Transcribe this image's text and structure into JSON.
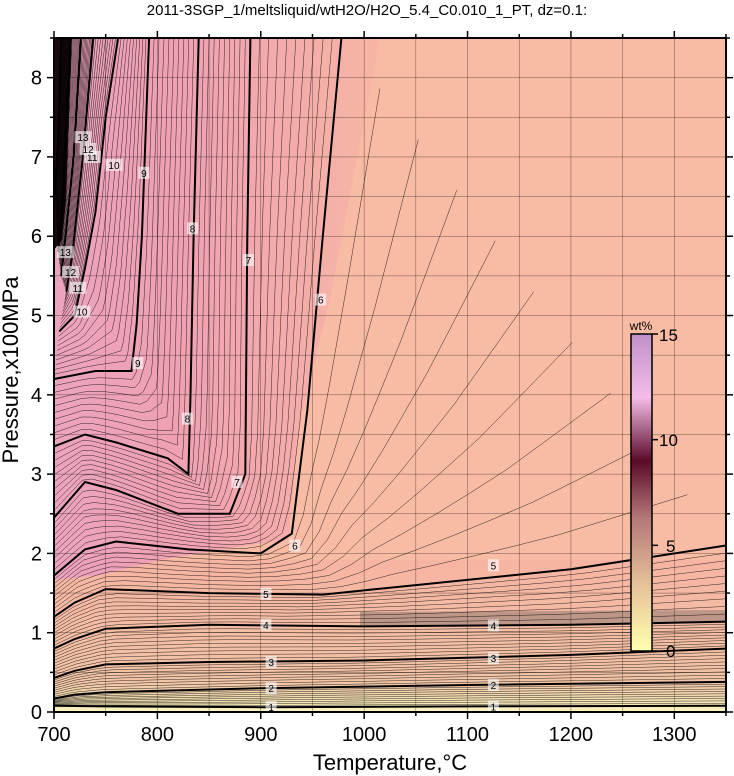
{
  "chart_data": {
    "type": "contour",
    "title": "2011-3SGP_1/meltsliquid/wtH2O/H2O_5.4_C0.010_1_PT, dz=0.1:",
    "xlabel": "Temperature,°C",
    "ylabel": "Pressure,x100MPa",
    "xlim": [
      700,
      1350
    ],
    "ylim": [
      0,
      8.5
    ],
    "x_ticks": [
      "700",
      "800",
      "900",
      "1000",
      "1100",
      "1200",
      "1300"
    ],
    "y_ticks": [
      "0",
      "1",
      "2",
      "3",
      "4",
      "5",
      "6",
      "7",
      "8"
    ],
    "grid": true,
    "colorbar": {
      "title": "wt%",
      "range": [
        0,
        15
      ],
      "ticks": [
        "0",
        "5",
        "10",
        "15"
      ],
      "placement": "right-inside"
    },
    "major_contour_interval": 1,
    "minor_contour_interval": 0.1,
    "contours": [
      {
        "level": "1",
        "points": [
          [
            700,
            0.08
          ],
          [
            750,
            0.07
          ],
          [
            900,
            0.06
          ],
          [
            1100,
            0.07
          ],
          [
            1350,
            0.08
          ]
        ]
      },
      {
        "level": "2",
        "points": [
          [
            700,
            0.17
          ],
          [
            720,
            0.22
          ],
          [
            750,
            0.25
          ],
          [
            900,
            0.3
          ],
          [
            1100,
            0.34
          ],
          [
            1350,
            0.38
          ]
        ]
      },
      {
        "level": "3",
        "points": [
          [
            700,
            0.43
          ],
          [
            720,
            0.52
          ],
          [
            750,
            0.6
          ],
          [
            850,
            0.63
          ],
          [
            1000,
            0.65
          ],
          [
            1200,
            0.72
          ],
          [
            1350,
            0.8
          ]
        ]
      },
      {
        "level": "4",
        "points": [
          [
            700,
            0.8
          ],
          [
            720,
            0.92
          ],
          [
            750,
            1.05
          ],
          [
            850,
            1.1
          ],
          [
            1000,
            1.08
          ],
          [
            1200,
            1.1
          ],
          [
            1350,
            1.14
          ]
        ]
      },
      {
        "level": "5",
        "points": [
          [
            700,
            1.2
          ],
          [
            720,
            1.38
          ],
          [
            750,
            1.55
          ],
          [
            850,
            1.5
          ],
          [
            960,
            1.48
          ],
          [
            1050,
            1.6
          ],
          [
            1200,
            1.8
          ],
          [
            1350,
            2.1
          ]
        ]
      },
      {
        "level": "6",
        "points": [
          [
            700,
            1.72
          ],
          [
            730,
            2.05
          ],
          [
            760,
            2.15
          ],
          [
            830,
            2.05
          ],
          [
            900,
            2.0
          ],
          [
            930,
            2.25
          ],
          [
            945,
            3.8
          ],
          [
            960,
            6.0
          ],
          [
            978,
            8.5
          ]
        ]
      },
      {
        "level": "7",
        "points": [
          [
            700,
            2.45
          ],
          [
            730,
            2.9
          ],
          [
            760,
            2.8
          ],
          [
            820,
            2.5
          ],
          [
            870,
            2.5
          ],
          [
            885,
            3.0
          ],
          [
            887,
            6.0
          ],
          [
            890,
            8.5
          ]
        ]
      },
      {
        "level": "8",
        "points": [
          [
            700,
            3.35
          ],
          [
            730,
            3.5
          ],
          [
            760,
            3.4
          ],
          [
            810,
            3.2
          ],
          [
            830,
            3.0
          ],
          [
            832,
            4.0
          ],
          [
            835,
            6.0
          ],
          [
            840,
            8.5
          ]
        ]
      },
      {
        "level": "9",
        "points": [
          [
            700,
            4.2
          ],
          [
            740,
            4.3
          ],
          [
            775,
            4.3
          ],
          [
            780,
            4.9
          ],
          [
            785,
            6.0
          ],
          [
            792,
            8.5
          ]
        ]
      },
      {
        "level": "10",
        "points": [
          [
            705,
            4.8
          ],
          [
            720,
            5.0
          ],
          [
            730,
            5.6
          ],
          [
            740,
            6.3
          ],
          [
            750,
            7.5
          ],
          [
            762,
            8.5
          ]
        ]
      },
      {
        "level": "11",
        "points": [
          [
            712,
            5.3
          ],
          [
            718,
            5.8
          ],
          [
            728,
            7.0
          ],
          [
            738,
            8.5
          ]
        ]
      },
      {
        "level": "12",
        "points": [
          [
            707,
            5.5
          ],
          [
            712,
            6.1
          ],
          [
            719,
            7.0
          ],
          [
            726,
            8.5
          ]
        ]
      },
      {
        "level": "13",
        "points": [
          [
            704,
            5.8
          ],
          [
            708,
            6.4
          ],
          [
            712,
            7.5
          ],
          [
            716,
            8.5
          ]
        ]
      },
      {
        "level": "14",
        "points": [
          [
            701,
            6.5
          ],
          [
            704,
            7.2
          ],
          [
            707,
            8.5
          ]
        ]
      }
    ],
    "contour_labels": [
      {
        "text": "1",
        "x": 910,
        "y": 0.06
      },
      {
        "text": "1",
        "x": 1125,
        "y": 0.07
      },
      {
        "text": "2",
        "x": 910,
        "y": 0.3
      },
      {
        "text": "2",
        "x": 1125,
        "y": 0.34
      },
      {
        "text": "3",
        "x": 910,
        "y": 0.63
      },
      {
        "text": "3",
        "x": 1125,
        "y": 0.68
      },
      {
        "text": "4",
        "x": 905,
        "y": 1.1
      },
      {
        "text": "4",
        "x": 1125,
        "y": 1.09
      },
      {
        "text": "5",
        "x": 905,
        "y": 1.49
      },
      {
        "text": "5",
        "x": 1125,
        "y": 1.85
      },
      {
        "text": "6",
        "x": 933,
        "y": 2.1
      },
      {
        "text": "6",
        "x": 958,
        "y": 5.2
      },
      {
        "text": "7",
        "x": 877,
        "y": 2.9
      },
      {
        "text": "7",
        "x": 888,
        "y": 5.7
      },
      {
        "text": "8",
        "x": 829,
        "y": 3.7
      },
      {
        "text": "8",
        "x": 834,
        "y": 6.1
      },
      {
        "text": "9",
        "x": 781,
        "y": 4.4
      },
      {
        "text": "9",
        "x": 787,
        "y": 6.8
      },
      {
        "text": "10",
        "x": 727,
        "y": 5.05
      },
      {
        "text": "10",
        "x": 758,
        "y": 6.9
      },
      {
        "text": "11",
        "x": 723,
        "y": 5.35
      },
      {
        "text": "11",
        "x": 737,
        "y": 7.0
      },
      {
        "text": "12",
        "x": 716,
        "y": 5.55
      },
      {
        "text": "12",
        "x": 733,
        "y": 7.1
      },
      {
        "text": "13",
        "x": 711,
        "y": 5.8
      },
      {
        "text": "13",
        "x": 728,
        "y": 7.25
      }
    ]
  }
}
